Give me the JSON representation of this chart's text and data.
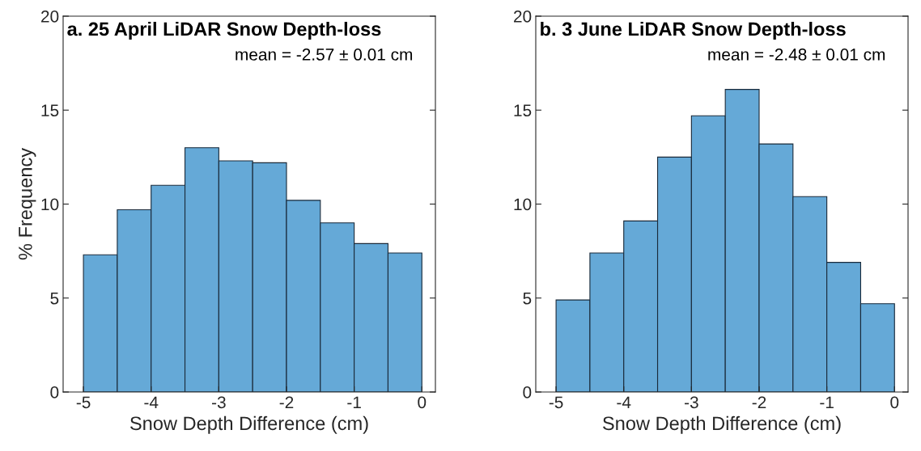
{
  "chart_data": [
    {
      "type": "histogram",
      "title": "a. 25 April LiDAR Snow Depth-loss",
      "xlabel": "Snow Depth Difference (cm)",
      "ylabel": "% Frequency",
      "annotations": [
        "mean = -2.57 ± 0.01 cm"
      ],
      "bins": [
        -5,
        -4.5,
        -4,
        -3.5,
        -3,
        -2.5,
        -2,
        -1.5,
        -1,
        -0.5,
        0
      ],
      "values": [
        7.3,
        9.7,
        11.0,
        13.0,
        12.3,
        12.2,
        10.2,
        9.0,
        7.9,
        7.4
      ],
      "color": "#65a9d7",
      "xlim": [
        -5.3,
        0.2
      ],
      "xticks": [
        -5,
        -4,
        -3,
        -2,
        -1,
        0
      ],
      "ylim": [
        0,
        20
      ],
      "yticks": [
        0,
        5,
        10,
        15,
        20
      ],
      "grid": false
    },
    {
      "type": "histogram",
      "title": "b. 3 June LiDAR Snow Depth-loss",
      "xlabel": "Snow Depth Difference (cm)",
      "annotations": [
        "mean = -2.48 ± 0.01 cm"
      ],
      "bins": [
        -5,
        -4.5,
        -4,
        -3.5,
        -3,
        -2.5,
        -2,
        -1.5,
        -1,
        -0.5,
        0
      ],
      "values": [
        4.9,
        7.4,
        9.1,
        12.5,
        14.7,
        16.1,
        13.2,
        10.4,
        6.9,
        4.7
      ],
      "color": "#65a9d7",
      "xlim": [
        -5.3,
        0.2
      ],
      "xticks": [
        -5,
        -4,
        -3,
        -2,
        -1,
        0
      ],
      "ylim": [
        0,
        20
      ],
      "yticks": [
        0,
        5,
        10,
        15,
        20
      ],
      "grid": false
    }
  ]
}
